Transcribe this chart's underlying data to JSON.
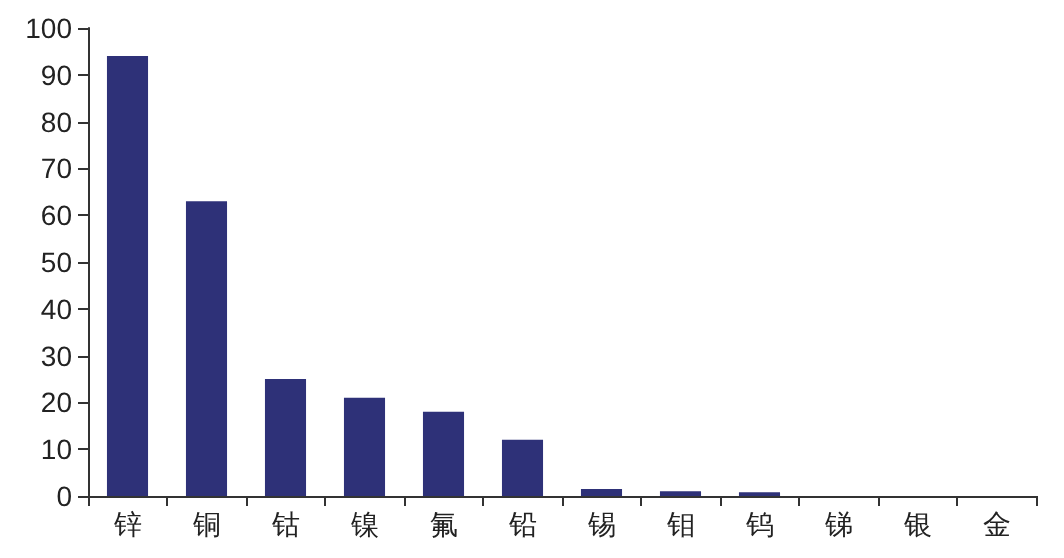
{
  "chart_data": {
    "type": "bar",
    "categories": [
      "锌",
      "铜",
      "钴",
      "镍",
      "氟",
      "铅",
      "锡",
      "钼",
      "钨",
      "锑",
      "银",
      "金"
    ],
    "values": [
      94,
      63,
      25,
      21,
      18,
      12,
      1.5,
      1,
      0.8,
      null,
      null,
      null
    ],
    "color": "#2e3178",
    "ylim": [
      0,
      100
    ],
    "yticks": [
      0,
      10,
      20,
      30,
      40,
      50,
      60,
      70,
      80,
      90,
      100
    ],
    "grid": false
  }
}
